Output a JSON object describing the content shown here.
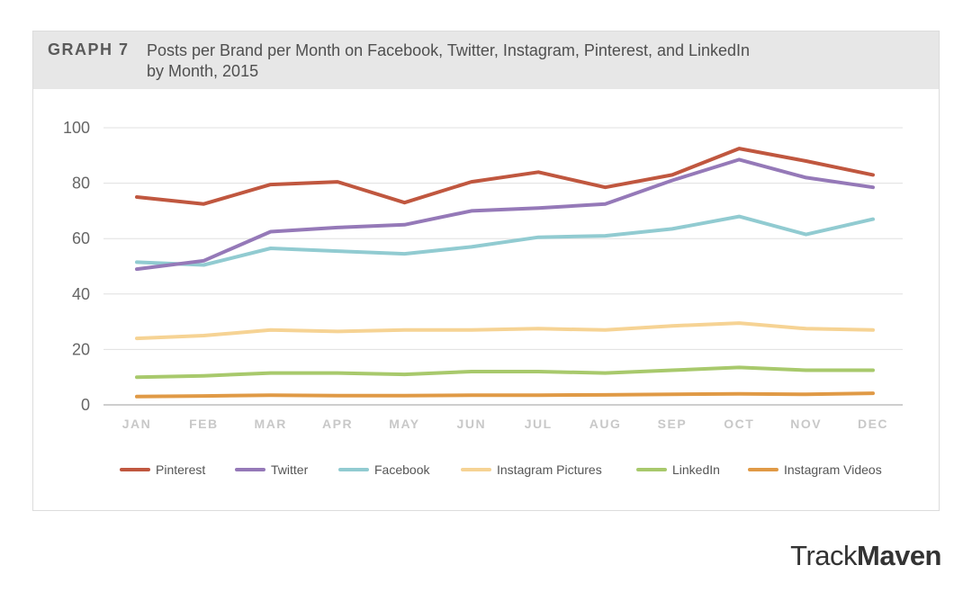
{
  "header": {
    "graph_label": "GRAPH 7",
    "title_line1": "Posts per Brand per Month on Facebook, Twitter, Instagram, Pinterest, and LinkedIn",
    "title_line2": "by Month, 2015"
  },
  "brand": {
    "part1": "Track",
    "part2": "Maven"
  },
  "chart_data": {
    "type": "line",
    "categories": [
      "JAN",
      "FEB",
      "MAR",
      "APR",
      "MAY",
      "JUN",
      "JUL",
      "AUG",
      "SEP",
      "OCT",
      "NOV",
      "DEC"
    ],
    "ylim": [
      0,
      100
    ],
    "yticks": [
      0,
      20,
      40,
      60,
      80,
      100
    ],
    "grid": true,
    "legend_position": "bottom",
    "series": [
      {
        "name": "Pinterest",
        "color": "#c0573f",
        "values": [
          75,
          72.5,
          79.5,
          80.5,
          73,
          80.5,
          84,
          78.5,
          83,
          92.5,
          88,
          83
        ]
      },
      {
        "name": "Twitter",
        "color": "#9579b8",
        "values": [
          49,
          52,
          62.5,
          64,
          65,
          70,
          71,
          72.5,
          81,
          88.5,
          82,
          78.5
        ]
      },
      {
        "name": "Facebook",
        "color": "#91cbd1",
        "values": [
          51.5,
          50.5,
          56.5,
          55.5,
          54.5,
          57,
          60.5,
          61,
          63.5,
          68,
          61.5,
          67
        ]
      },
      {
        "name": "Instagram Pictures",
        "color": "#f6d394",
        "values": [
          24,
          25,
          27,
          26.5,
          27,
          27,
          27.5,
          27,
          28.5,
          29.5,
          27.5,
          27
        ]
      },
      {
        "name": "LinkedIn",
        "color": "#a8c96c",
        "values": [
          10,
          10.5,
          11.5,
          11.5,
          11,
          12,
          12,
          11.5,
          12.5,
          13.5,
          12.5,
          12.5
        ]
      },
      {
        "name": "Instagram Videos",
        "color": "#e09a46",
        "values": [
          3,
          3.2,
          3.5,
          3.3,
          3.3,
          3.5,
          3.5,
          3.6,
          3.8,
          4,
          3.8,
          4.2
        ]
      }
    ]
  }
}
